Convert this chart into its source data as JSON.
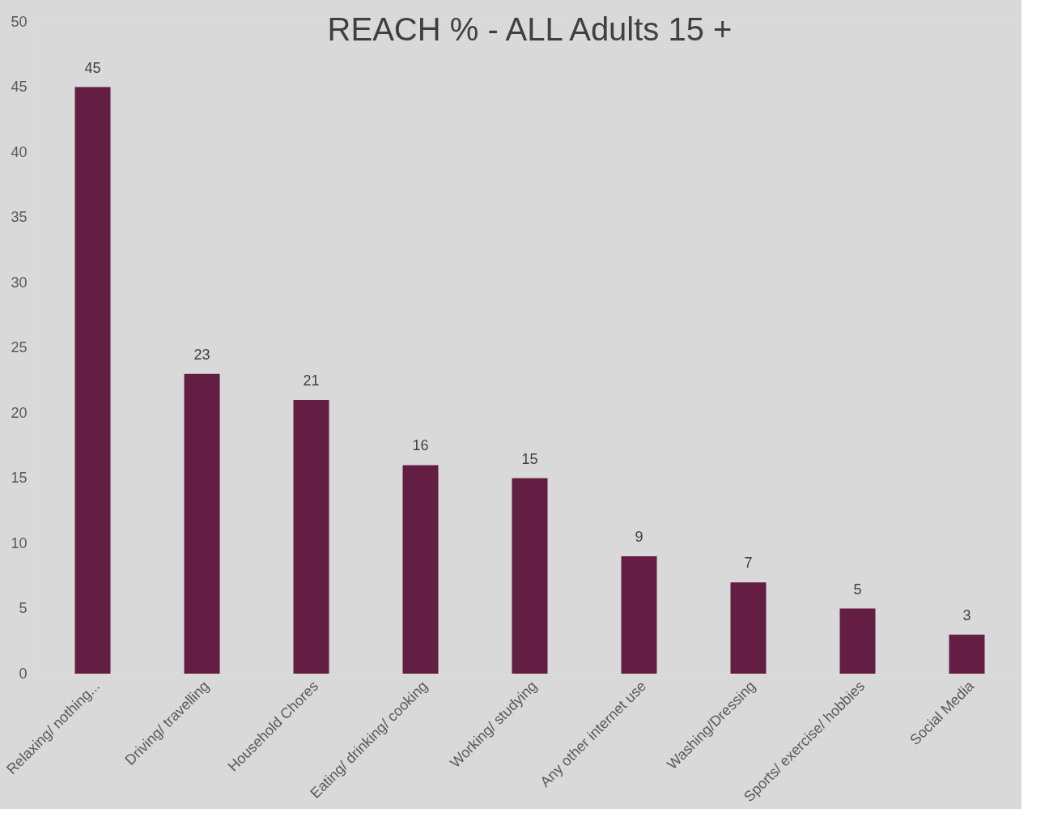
{
  "chart_data": {
    "type": "bar",
    "title": "REACH % - ALL Adults 15 +",
    "categories": [
      "Relaxing/ nothing...",
      "Driving/ travelling",
      "Household Chores",
      "Eating/ drinking/ cooking",
      "Working/ studying",
      "Any other internet use",
      "Washing/Dressing",
      "Sports/ exercise/ hobbies",
      "Social Media"
    ],
    "values": [
      45,
      23,
      21,
      16,
      15,
      9,
      7,
      5,
      3
    ],
    "color": "#641e43",
    "ylim": [
      0,
      50
    ],
    "yticks": [
      0,
      5,
      10,
      15,
      20,
      25,
      30,
      35,
      40,
      45,
      50
    ],
    "data_labels": true
  }
}
